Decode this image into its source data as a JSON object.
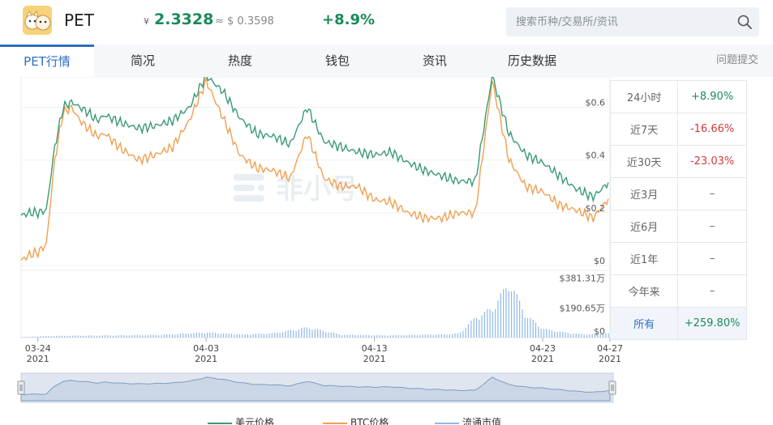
{
  "header": {
    "coin_name": "PET",
    "cny_symbol": "¥",
    "cny_price": "2.3328",
    "usd_price": "≈ $ 0.3598",
    "change_24h": "+8.9%",
    "logo": "pet-cartoon-logo"
  },
  "search": {
    "placeholder": "搜索币种/交易所/资讯",
    "icon": "search-icon"
  },
  "tabs": [
    {
      "label": "PET行情",
      "active": true
    },
    {
      "label": "简况"
    },
    {
      "label": "热度"
    },
    {
      "label": "钱包"
    },
    {
      "label": "资讯"
    },
    {
      "label": "历史数据"
    }
  ],
  "feedback_label": "问题提交",
  "watermark": "非小号",
  "stats": [
    {
      "period": "24小时",
      "value": "+8.90%",
      "trend": "up"
    },
    {
      "period": "近7天",
      "value": "-16.66%",
      "trend": "down"
    },
    {
      "period": "近30天",
      "value": "-23.03%",
      "trend": "down"
    },
    {
      "period": "近3月",
      "value": "–",
      "trend": "flat"
    },
    {
      "period": "近6月",
      "value": "–",
      "trend": "flat"
    },
    {
      "period": "近1年",
      "value": "–",
      "trend": "flat"
    },
    {
      "period": "今年来",
      "value": "–",
      "trend": "flat"
    },
    {
      "period": "所有",
      "value": "+259.80%",
      "trend": "up",
      "selected": true
    }
  ],
  "legend": {
    "usd": "美元价格",
    "btc": "BTC价格",
    "cap": "流通市值"
  },
  "chart_data": {
    "type": "line",
    "x_ticks": [
      {
        "date": "03-24",
        "year": "2021"
      },
      {
        "date": "04-03",
        "year": "2021"
      },
      {
        "date": "04-13",
        "year": "2021"
      },
      {
        "date": "04-23",
        "year": "2021"
      },
      {
        "date": "04-27",
        "year": "2021"
      }
    ],
    "x_range": [
      "2021-03-23",
      "2021-04-27"
    ],
    "y_price_ticks": [
      "$0",
      "$0.2",
      "$0.4",
      "$0.6"
    ],
    "y_price_range": [
      0,
      0.7
    ],
    "y_volume_ticks": [
      "$0",
      "$190.65万",
      "$381.31万"
    ],
    "y_volume_range_wan": [
      0,
      400
    ],
    "colors": {
      "usd": "#3a9a74",
      "btc": "#f0a050",
      "cap": "#8fb8e8"
    },
    "series": [
      {
        "name": "美元价格",
        "x": [
          0,
          0.5,
          1,
          1.5,
          2,
          2.5,
          3,
          3.5,
          4,
          4.5,
          5,
          6,
          7,
          8,
          9,
          10,
          11,
          12,
          13,
          14,
          15,
          16,
          17,
          18,
          19,
          20,
          21,
          22,
          23,
          24,
          25,
          26,
          27,
          28,
          29,
          30,
          31,
          32,
          33,
          34,
          35
        ],
        "values": [
          0.19,
          0.2,
          0.2,
          0.21,
          0.45,
          0.6,
          0.62,
          0.6,
          0.58,
          0.55,
          0.57,
          0.54,
          0.52,
          0.53,
          0.55,
          0.6,
          0.72,
          0.66,
          0.56,
          0.5,
          0.49,
          0.46,
          0.6,
          0.47,
          0.45,
          0.43,
          0.42,
          0.43,
          0.39,
          0.36,
          0.34,
          0.32,
          0.32,
          0.72,
          0.5,
          0.42,
          0.39,
          0.34,
          0.29,
          0.26,
          0.32
        ]
      },
      {
        "name": "BTC价格",
        "x": [
          0,
          0.5,
          1,
          1.5,
          2,
          2.5,
          3,
          3.5,
          4,
          4.5,
          5,
          6,
          7,
          8,
          9,
          10,
          11,
          12,
          13,
          14,
          15,
          16,
          17,
          18,
          19,
          20,
          21,
          22,
          23,
          24,
          25,
          26,
          27,
          28,
          29,
          30,
          31,
          32,
          33,
          34,
          35
        ],
        "values": [
          0.02,
          0.04,
          0.05,
          0.08,
          0.4,
          0.58,
          0.6,
          0.55,
          0.52,
          0.49,
          0.5,
          0.44,
          0.4,
          0.42,
          0.45,
          0.55,
          0.7,
          0.56,
          0.42,
          0.37,
          0.36,
          0.33,
          0.5,
          0.33,
          0.3,
          0.3,
          0.25,
          0.24,
          0.2,
          0.18,
          0.18,
          0.2,
          0.2,
          0.7,
          0.4,
          0.3,
          0.28,
          0.23,
          0.21,
          0.18,
          0.26
        ]
      },
      {
        "name": "流通市值",
        "x": [
          0,
          2,
          5,
          8,
          11,
          13,
          15,
          17,
          19,
          21,
          22,
          23,
          24,
          25,
          26,
          27,
          28,
          29,
          30,
          31,
          32,
          33,
          34,
          35
        ],
        "values": [
          5,
          12,
          15,
          18,
          35,
          22,
          30,
          70,
          20,
          16,
          15,
          18,
          20,
          22,
          28,
          140,
          200,
          380,
          150,
          60,
          40,
          25,
          22,
          30
        ]
      }
    ]
  }
}
